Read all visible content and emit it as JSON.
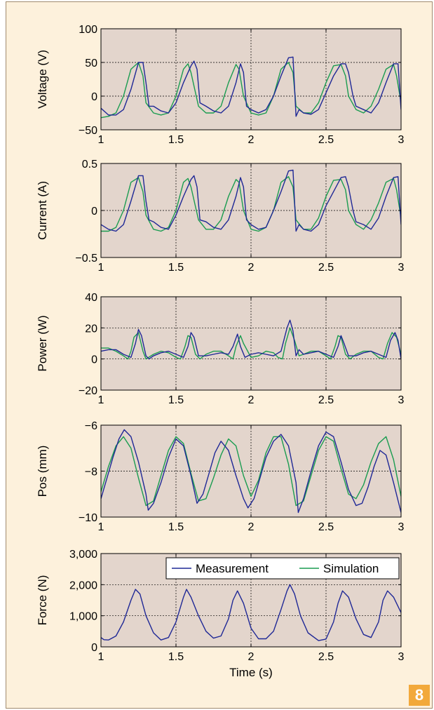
{
  "figure_number": "8",
  "colors": {
    "panel_bg": "#fdf1dc",
    "plot_bg": "#e3d5cc",
    "measurement": "#1f2896",
    "simulation": "#1a9c50",
    "badge": "#f2a93b"
  },
  "legend": {
    "measurement": "Measurement",
    "simulation": "Simulation",
    "placement": "top-right of bottom panel"
  },
  "chart_data": [
    {
      "type": "line",
      "ylabel": "Voltage (V)",
      "xlabel": "",
      "xlim": [
        1,
        3
      ],
      "ylim": [
        -50,
        100
      ],
      "xticks": [
        "1",
        "1.5",
        "2",
        "2.5",
        "3"
      ],
      "yticks": [
        "100",
        "50",
        "0",
        "−50"
      ],
      "grid": true,
      "series": [
        {
          "name": "Measurement",
          "x": [
            1.0,
            1.05,
            1.1,
            1.15,
            1.2,
            1.25,
            1.28,
            1.3,
            1.32,
            1.35,
            1.4,
            1.45,
            1.5,
            1.55,
            1.6,
            1.62,
            1.64,
            1.66,
            1.7,
            1.75,
            1.8,
            1.85,
            1.9,
            1.93,
            1.95,
            1.97,
            2.0,
            2.05,
            2.1,
            2.15,
            2.2,
            2.25,
            2.28,
            2.3,
            2.32,
            2.35,
            2.4,
            2.45,
            2.5,
            2.55,
            2.6,
            2.63,
            2.65,
            2.68,
            2.7,
            2.75,
            2.8,
            2.85,
            2.9,
            2.95,
            2.98,
            3.0
          ],
          "y": [
            -18,
            -28,
            -28,
            -20,
            10,
            50,
            50,
            20,
            -15,
            -15,
            -22,
            -25,
            -10,
            20,
            45,
            52,
            40,
            -10,
            -15,
            -22,
            -25,
            -15,
            20,
            48,
            35,
            -15,
            -20,
            -25,
            -20,
            0,
            30,
            57,
            58,
            -30,
            -20,
            -25,
            -27,
            -20,
            5,
            30,
            48,
            48,
            35,
            0,
            -15,
            -20,
            -25,
            -10,
            20,
            48,
            48,
            -20
          ]
        },
        {
          "name": "Simulation",
          "x": [
            1.0,
            1.05,
            1.1,
            1.15,
            1.2,
            1.25,
            1.28,
            1.3,
            1.35,
            1.4,
            1.45,
            1.5,
            1.55,
            1.58,
            1.6,
            1.65,
            1.7,
            1.75,
            1.8,
            1.85,
            1.9,
            1.92,
            1.95,
            2.0,
            2.05,
            2.1,
            2.15,
            2.2,
            2.25,
            2.28,
            2.3,
            2.35,
            2.4,
            2.45,
            2.5,
            2.55,
            2.6,
            2.63,
            2.65,
            2.7,
            2.75,
            2.8,
            2.85,
            2.9,
            2.95,
            2.97,
            3.0
          ],
          "y": [
            -32,
            -30,
            -25,
            0,
            40,
            50,
            30,
            -10,
            -25,
            -28,
            -25,
            0,
            40,
            48,
            35,
            -15,
            -25,
            -25,
            -15,
            20,
            47,
            40,
            0,
            -25,
            -28,
            -25,
            0,
            40,
            50,
            35,
            -15,
            -25,
            -25,
            -10,
            20,
            45,
            47,
            30,
            0,
            -20,
            -25,
            -15,
            10,
            40,
            47,
            30,
            -10
          ]
        }
      ]
    },
    {
      "type": "line",
      "ylabel": "Current (A)",
      "xlabel": "",
      "xlim": [
        1,
        3
      ],
      "ylim": [
        -0.5,
        0.5
      ],
      "xticks": [
        "1",
        "1.5",
        "2",
        "2.5",
        "3"
      ],
      "yticks": [
        "0.5",
        "0",
        "−0.5"
      ],
      "grid": true,
      "series": [
        {
          "name": "Measurement",
          "x": [
            1.0,
            1.05,
            1.1,
            1.15,
            1.2,
            1.25,
            1.28,
            1.3,
            1.32,
            1.35,
            1.4,
            1.45,
            1.5,
            1.55,
            1.6,
            1.62,
            1.64,
            1.66,
            1.7,
            1.75,
            1.8,
            1.85,
            1.9,
            1.93,
            1.95,
            1.97,
            2.0,
            2.05,
            2.1,
            2.15,
            2.2,
            2.25,
            2.28,
            2.3,
            2.32,
            2.35,
            2.4,
            2.45,
            2.5,
            2.55,
            2.6,
            2.63,
            2.65,
            2.68,
            2.7,
            2.75,
            2.8,
            2.85,
            2.9,
            2.95,
            2.98,
            3.0
          ],
          "y": [
            -0.15,
            -0.2,
            -0.22,
            -0.15,
            0.1,
            0.37,
            0.37,
            0.1,
            -0.1,
            -0.12,
            -0.18,
            -0.2,
            -0.05,
            0.15,
            0.33,
            0.37,
            0.25,
            -0.1,
            -0.12,
            -0.18,
            -0.2,
            -0.1,
            0.15,
            0.35,
            0.25,
            -0.1,
            -0.15,
            -0.2,
            -0.18,
            0.0,
            0.2,
            0.42,
            0.43,
            -0.22,
            -0.15,
            -0.2,
            -0.22,
            -0.15,
            0.05,
            0.2,
            0.35,
            0.36,
            0.25,
            0.0,
            -0.12,
            -0.15,
            -0.2,
            -0.08,
            0.15,
            0.35,
            0.36,
            -0.15
          ]
        },
        {
          "name": "Simulation",
          "x": [
            1.0,
            1.05,
            1.1,
            1.15,
            1.2,
            1.25,
            1.28,
            1.3,
            1.35,
            1.4,
            1.45,
            1.5,
            1.55,
            1.58,
            1.6,
            1.65,
            1.7,
            1.75,
            1.8,
            1.85,
            1.9,
            1.92,
            1.95,
            2.0,
            2.05,
            2.1,
            2.15,
            2.2,
            2.25,
            2.28,
            2.3,
            2.35,
            2.4,
            2.45,
            2.5,
            2.55,
            2.6,
            2.63,
            2.65,
            2.7,
            2.75,
            2.8,
            2.85,
            2.9,
            2.95,
            2.97,
            3.0
          ],
          "y": [
            -0.22,
            -0.22,
            -0.18,
            0.0,
            0.3,
            0.35,
            0.2,
            -0.05,
            -0.2,
            -0.22,
            -0.18,
            0.0,
            0.3,
            0.34,
            0.25,
            -0.1,
            -0.2,
            -0.2,
            -0.1,
            0.15,
            0.33,
            0.3,
            0.0,
            -0.2,
            -0.22,
            -0.18,
            0.0,
            0.3,
            0.36,
            0.25,
            -0.1,
            -0.2,
            -0.2,
            -0.08,
            0.15,
            0.32,
            0.33,
            0.22,
            0.0,
            -0.15,
            -0.2,
            -0.1,
            0.08,
            0.3,
            0.34,
            0.22,
            -0.08
          ]
        }
      ]
    },
    {
      "type": "line",
      "ylabel": "Power (W)",
      "xlabel": "",
      "xlim": [
        1,
        3
      ],
      "ylim": [
        -20,
        40
      ],
      "xticks": [
        "1",
        "1.5",
        "2",
        "2.5",
        "3"
      ],
      "yticks": [
        "40",
        "20",
        "0",
        "−20"
      ],
      "grid": true,
      "series": [
        {
          "name": "Measurement",
          "x": [
            1.0,
            1.05,
            1.1,
            1.15,
            1.2,
            1.23,
            1.25,
            1.27,
            1.3,
            1.32,
            1.35,
            1.4,
            1.45,
            1.5,
            1.55,
            1.58,
            1.6,
            1.62,
            1.65,
            1.7,
            1.75,
            1.8,
            1.85,
            1.88,
            1.91,
            1.93,
            1.96,
            2.0,
            2.05,
            2.1,
            2.15,
            2.2,
            2.24,
            2.26,
            2.28,
            2.3,
            2.32,
            2.35,
            2.4,
            2.45,
            2.5,
            2.55,
            2.58,
            2.6,
            2.62,
            2.65,
            2.7,
            2.75,
            2.8,
            2.85,
            2.9,
            2.93,
            2.96,
            2.98,
            3.0
          ],
          "y": [
            5,
            6,
            6,
            3,
            1,
            10,
            19,
            15,
            2,
            0,
            2,
            4,
            5,
            3,
            1,
            8,
            17,
            14,
            2,
            2,
            3,
            4,
            3,
            8,
            16,
            8,
            1,
            3,
            4,
            3,
            2,
            5,
            20,
            25,
            18,
            2,
            6,
            3,
            4,
            5,
            3,
            1,
            8,
            15,
            10,
            2,
            2,
            4,
            5,
            3,
            1,
            12,
            17,
            12,
            0
          ]
        },
        {
          "name": "Simulation",
          "x": [
            1.0,
            1.05,
            1.1,
            1.15,
            1.18,
            1.2,
            1.22,
            1.25,
            1.28,
            1.3,
            1.35,
            1.4,
            1.45,
            1.5,
            1.53,
            1.56,
            1.58,
            1.6,
            1.63,
            1.66,
            1.7,
            1.75,
            1.8,
            1.85,
            1.88,
            1.9,
            1.93,
            1.95,
            2.0,
            2.05,
            2.1,
            2.15,
            2.18,
            2.21,
            2.23,
            2.26,
            2.29,
            2.32,
            2.35,
            2.4,
            2.45,
            2.5,
            2.53,
            2.56,
            2.58,
            2.6,
            2.63,
            2.66,
            2.7,
            2.75,
            2.8,
            2.85,
            2.88,
            2.91,
            2.94,
            2.97,
            3.0
          ],
          "y": [
            7,
            7,
            5,
            2,
            0,
            5,
            14,
            17,
            5,
            0,
            3,
            5,
            4,
            1,
            0,
            8,
            15,
            14,
            3,
            0,
            3,
            5,
            5,
            2,
            0,
            8,
            15,
            10,
            1,
            2,
            5,
            4,
            1,
            0,
            10,
            20,
            12,
            2,
            3,
            5,
            5,
            2,
            0,
            8,
            15,
            14,
            3,
            0,
            3,
            5,
            5,
            1,
            0,
            10,
            17,
            14,
            3
          ]
        }
      ]
    },
    {
      "type": "line",
      "ylabel": "Pos (mm)",
      "xlabel": "",
      "xlim": [
        1,
        3
      ],
      "ylim": [
        -10,
        -6
      ],
      "xticks": [
        "1",
        "1.5",
        "2",
        "2.5",
        "3"
      ],
      "yticks": [
        "−6",
        "−8",
        "−10"
      ],
      "grid": true,
      "series": [
        {
          "name": "Measurement",
          "x": [
            1.0,
            1.04,
            1.08,
            1.12,
            1.155,
            1.2,
            1.25,
            1.3,
            1.315,
            1.35,
            1.4,
            1.45,
            1.5,
            1.55,
            1.6,
            1.64,
            1.68,
            1.72,
            1.76,
            1.8,
            1.85,
            1.9,
            1.95,
            1.98,
            2.02,
            2.06,
            2.1,
            2.15,
            2.2,
            2.25,
            2.3,
            2.315,
            2.35,
            2.4,
            2.45,
            2.5,
            2.55,
            2.6,
            2.65,
            2.7,
            2.74,
            2.78,
            2.82,
            2.86,
            2.9,
            2.95,
            3.0
          ],
          "y": [
            -9.2,
            -8.3,
            -7.4,
            -6.6,
            -6.2,
            -6.5,
            -7.6,
            -9.0,
            -9.7,
            -9.4,
            -8.5,
            -7.4,
            -6.6,
            -6.9,
            -8.2,
            -9.4,
            -9.0,
            -8.1,
            -7.2,
            -6.7,
            -7.1,
            -8.2,
            -9.2,
            -9.6,
            -9.2,
            -8.3,
            -7.4,
            -6.7,
            -6.4,
            -6.9,
            -8.5,
            -9.8,
            -9.2,
            -8.0,
            -6.9,
            -6.3,
            -6.5,
            -7.6,
            -8.8,
            -9.5,
            -9.4,
            -8.7,
            -7.8,
            -7.1,
            -7.3,
            -8.5,
            -9.8
          ]
        },
        {
          "name": "Simulation",
          "x": [
            1.0,
            1.05,
            1.1,
            1.15,
            1.2,
            1.25,
            1.3,
            1.35,
            1.4,
            1.45,
            1.5,
            1.55,
            1.6,
            1.65,
            1.7,
            1.75,
            1.8,
            1.85,
            1.9,
            1.95,
            2.0,
            2.05,
            2.1,
            2.15,
            2.2,
            2.25,
            2.3,
            2.35,
            2.4,
            2.45,
            2.5,
            2.55,
            2.6,
            2.65,
            2.7,
            2.75,
            2.8,
            2.85,
            2.9,
            2.95,
            3.0
          ],
          "y": [
            -8.9,
            -7.8,
            -6.9,
            -6.5,
            -7.0,
            -8.3,
            -9.5,
            -9.3,
            -8.2,
            -7.1,
            -6.5,
            -6.8,
            -8.1,
            -9.3,
            -9.2,
            -8.3,
            -7.3,
            -6.6,
            -6.9,
            -8.2,
            -9.1,
            -8.4,
            -7.2,
            -6.5,
            -6.5,
            -7.7,
            -9.5,
            -9.3,
            -8.2,
            -7.1,
            -6.5,
            -6.7,
            -7.9,
            -9.0,
            -9.2,
            -8.6,
            -7.6,
            -6.8,
            -6.5,
            -7.5,
            -9.1
          ]
        }
      ]
    },
    {
      "type": "line",
      "ylabel": "Force (N)",
      "xlabel": "Time (s)",
      "xlim": [
        1,
        3
      ],
      "ylim": [
        0,
        3000
      ],
      "xticks": [
        "1",
        "1.5",
        "2",
        "2.5",
        "3"
      ],
      "yticks": [
        "3,000",
        "2,000",
        "1,000",
        "0"
      ],
      "grid": true,
      "series": [
        {
          "name": "Measurement",
          "x": [
            1.0,
            1.02,
            1.05,
            1.1,
            1.15,
            1.2,
            1.23,
            1.26,
            1.3,
            1.35,
            1.4,
            1.45,
            1.5,
            1.55,
            1.57,
            1.6,
            1.65,
            1.7,
            1.75,
            1.8,
            1.85,
            1.88,
            1.91,
            1.95,
            2.0,
            2.05,
            2.1,
            2.15,
            2.2,
            2.24,
            2.26,
            2.29,
            2.33,
            2.38,
            2.45,
            2.5,
            2.55,
            2.58,
            2.61,
            2.65,
            2.7,
            2.75,
            2.8,
            2.85,
            2.88,
            2.91,
            2.95,
            3.0
          ],
          "y": [
            300,
            230,
            220,
            350,
            800,
            1500,
            1850,
            1700,
            1000,
            450,
            220,
            300,
            800,
            1600,
            1850,
            1600,
            1000,
            500,
            280,
            350,
            900,
            1500,
            1800,
            1400,
            600,
            260,
            260,
            500,
            1200,
            1800,
            2000,
            1700,
            1000,
            450,
            200,
            250,
            800,
            1400,
            1800,
            1600,
            900,
            400,
            300,
            800,
            1500,
            1800,
            1600,
            1100
          ]
        }
      ]
    }
  ]
}
